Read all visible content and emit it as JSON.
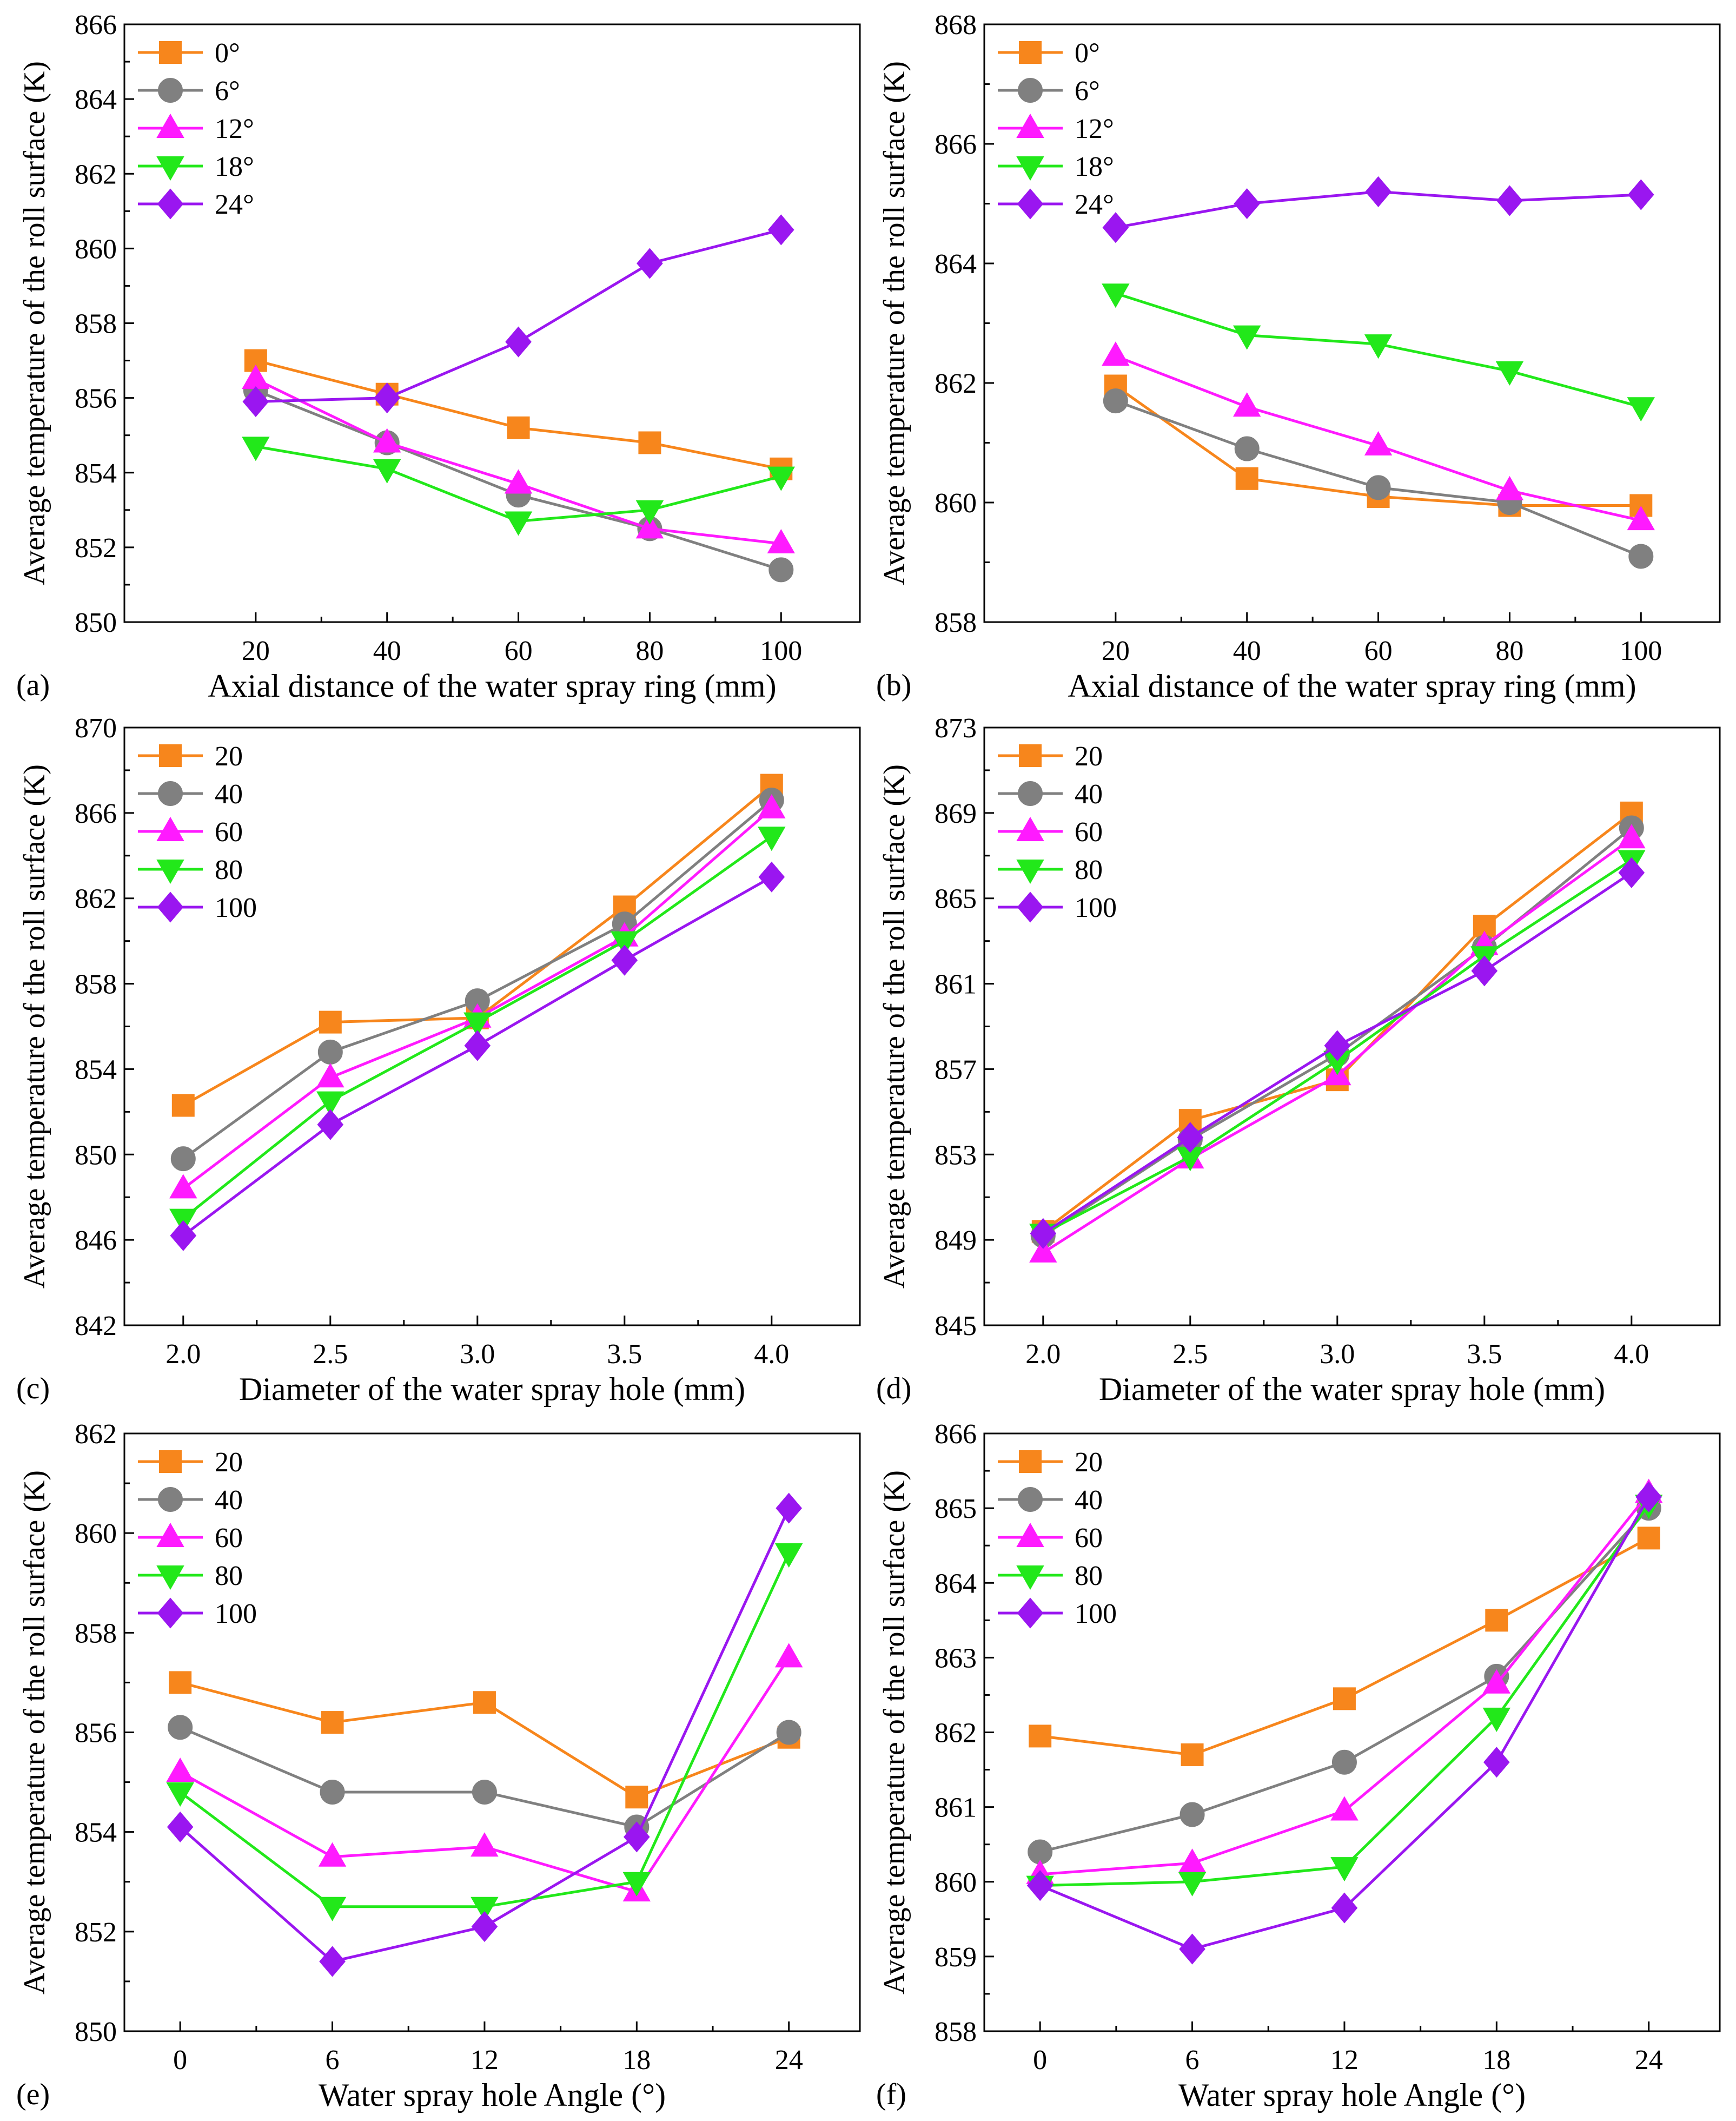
{
  "figure": {
    "marker_colors": {
      "orange": "#f7861c",
      "gray": "#808080",
      "magenta": "#ff1aff",
      "green": "#22e81a",
      "purple": "#9a16f0"
    }
  },
  "chart_data": [
    {
      "panel": "(a)",
      "type": "line",
      "title": "",
      "xlabel": "Axial distance of the water spray ring (mm)",
      "ylabel": "Average temperature of the roll surface (K)",
      "x": [
        20,
        40,
        60,
        80,
        100
      ],
      "xticks": [
        "20",
        "40",
        "60",
        "80",
        "100"
      ],
      "xlim": [
        0,
        112
      ],
      "ylim": [
        850,
        866
      ],
      "yticks": [
        "850",
        "852",
        "854",
        "856",
        "858",
        "860",
        "862",
        "864",
        "866"
      ],
      "legend_position": "top-left",
      "series": [
        {
          "name": "0°",
          "color": "orange",
          "marker": "square",
          "values": [
            857.0,
            856.1,
            855.2,
            854.8,
            854.1
          ]
        },
        {
          "name": "6°",
          "color": "gray",
          "marker": "circle",
          "values": [
            856.2,
            854.8,
            853.4,
            852.5,
            851.4
          ]
        },
        {
          "name": "12°",
          "color": "magenta",
          "marker": "triangle-up",
          "values": [
            856.5,
            854.8,
            853.7,
            852.5,
            852.1
          ]
        },
        {
          "name": "18°",
          "color": "green",
          "marker": "triangle-down",
          "values": [
            854.7,
            854.1,
            852.7,
            853.0,
            853.9
          ]
        },
        {
          "name": "24°",
          "color": "purple",
          "marker": "diamond",
          "values": [
            855.9,
            856.0,
            857.5,
            859.6,
            860.5
          ]
        }
      ]
    },
    {
      "panel": "(b)",
      "type": "line",
      "title": "",
      "xlabel": "Axial distance of the water spray ring (mm)",
      "ylabel": "Average temperature of the roll surface (K)",
      "x": [
        20,
        40,
        60,
        80,
        100
      ],
      "xticks": [
        "20",
        "40",
        "60",
        "80",
        "100"
      ],
      "xlim": [
        0,
        112
      ],
      "ylim": [
        858,
        868
      ],
      "yticks": [
        "858",
        "860",
        "862",
        "864",
        "866",
        "868"
      ],
      "legend_position": "top-left",
      "series": [
        {
          "name": "0°",
          "color": "orange",
          "marker": "square",
          "values": [
            861.95,
            860.4,
            860.1,
            859.95,
            859.95
          ]
        },
        {
          "name": "6°",
          "color": "gray",
          "marker": "circle",
          "values": [
            861.7,
            860.9,
            860.25,
            860.0,
            859.1
          ]
        },
        {
          "name": "12°",
          "color": "magenta",
          "marker": "triangle-up",
          "values": [
            862.45,
            861.6,
            860.95,
            860.2,
            859.7
          ]
        },
        {
          "name": "18°",
          "color": "green",
          "marker": "triangle-down",
          "values": [
            863.5,
            862.8,
            862.65,
            862.2,
            861.6
          ]
        },
        {
          "name": "24°",
          "color": "purple",
          "marker": "diamond",
          "values": [
            864.6,
            865.0,
            865.2,
            865.05,
            865.15
          ]
        }
      ]
    },
    {
      "panel": "(c)",
      "type": "line",
      "title": "",
      "xlabel": "Diameter of the water spray hole (mm)",
      "ylabel": "Average temperature of the roll surface (K)",
      "x": [
        2.0,
        2.5,
        3.0,
        3.5,
        4.0
      ],
      "xticks": [
        "2.0",
        "2.5",
        "3.0",
        "3.5",
        "4.0"
      ],
      "xlim": [
        1.8,
        4.3
      ],
      "ylim": [
        842,
        870
      ],
      "yticks": [
        "842",
        "846",
        "850",
        "854",
        "858",
        "862",
        "866",
        "870"
      ],
      "legend_position": "top-left",
      "series": [
        {
          "name": "20",
          "color": "orange",
          "marker": "square",
          "values": [
            852.3,
            856.2,
            856.4,
            861.6,
            867.3
          ]
        },
        {
          "name": "40",
          "color": "gray",
          "marker": "circle",
          "values": [
            849.8,
            854.8,
            857.2,
            860.8,
            866.6
          ]
        },
        {
          "name": "60",
          "color": "magenta",
          "marker": "triangle-up",
          "values": [
            848.4,
            853.6,
            856.4,
            860.2,
            866.2
          ]
        },
        {
          "name": "80",
          "color": "green",
          "marker": "triangle-down",
          "values": [
            847.0,
            852.5,
            856.2,
            860.0,
            864.9
          ]
        },
        {
          "name": "100",
          "color": "purple",
          "marker": "diamond",
          "values": [
            846.2,
            851.4,
            855.1,
            859.1,
            863.0
          ]
        }
      ]
    },
    {
      "panel": "(d)",
      "type": "line",
      "title": "",
      "xlabel": "Diameter of the water spray hole (mm)",
      "ylabel": "Average temperature of the roll surface (K)",
      "x": [
        2.0,
        2.5,
        3.0,
        3.5,
        4.0
      ],
      "xticks": [
        "2.0",
        "2.5",
        "3.0",
        "3.5",
        "4.0"
      ],
      "xlim": [
        1.8,
        4.3
      ],
      "ylim": [
        845,
        873
      ],
      "yticks": [
        "845",
        "849",
        "853",
        "857",
        "861",
        "865",
        "869",
        "873"
      ],
      "legend_position": "top-left",
      "series": [
        {
          "name": "20",
          "color": "orange",
          "marker": "square",
          "values": [
            849.4,
            854.6,
            856.5,
            863.7,
            869.0
          ]
        },
        {
          "name": "40",
          "color": "gray",
          "marker": "circle",
          "values": [
            849.2,
            853.7,
            857.7,
            862.7,
            868.3
          ]
        },
        {
          "name": "60",
          "color": "magenta",
          "marker": "triangle-up",
          "values": [
            848.4,
            852.8,
            856.7,
            862.8,
            867.8
          ]
        },
        {
          "name": "80",
          "color": "green",
          "marker": "triangle-down",
          "values": [
            849.3,
            852.9,
            857.4,
            862.3,
            866.8
          ]
        },
        {
          "name": "100",
          "color": "purple",
          "marker": "diamond",
          "values": [
            849.3,
            853.8,
            858.1,
            861.6,
            866.2
          ]
        }
      ]
    },
    {
      "panel": "(e)",
      "type": "line",
      "title": "",
      "xlabel": "Water spray hole Angle (°)",
      "ylabel": "Average temperature of the roll surface (K)",
      "x": [
        0,
        6,
        12,
        18,
        24
      ],
      "xticks": [
        "0",
        "6",
        "12",
        "18",
        "24"
      ],
      "xlim": [
        -2.2,
        26.8
      ],
      "ylim": [
        850,
        862
      ],
      "yticks": [
        "850",
        "852",
        "854",
        "856",
        "858",
        "860",
        "862"
      ],
      "legend_position": "top-left",
      "series": [
        {
          "name": "20",
          "color": "orange",
          "marker": "square",
          "values": [
            857.0,
            856.2,
            856.6,
            854.7,
            855.9
          ]
        },
        {
          "name": "40",
          "color": "gray",
          "marker": "circle",
          "values": [
            856.1,
            854.8,
            854.8,
            854.1,
            856.0
          ]
        },
        {
          "name": "60",
          "color": "magenta",
          "marker": "triangle-up",
          "values": [
            855.2,
            853.5,
            853.7,
            852.8,
            857.5
          ]
        },
        {
          "name": "80",
          "color": "green",
          "marker": "triangle-down",
          "values": [
            854.8,
            852.5,
            852.5,
            853.0,
            859.6
          ]
        },
        {
          "name": "100",
          "color": "purple",
          "marker": "diamond",
          "values": [
            854.1,
            851.4,
            852.1,
            853.9,
            860.5
          ]
        }
      ]
    },
    {
      "panel": "(f)",
      "type": "line",
      "title": "",
      "xlabel": "Water spray hole Angle (°)",
      "ylabel": "Average temperature of the roll surface (K)",
      "x": [
        0,
        6,
        12,
        18,
        24
      ],
      "xticks": [
        "0",
        "6",
        "12",
        "18",
        "24"
      ],
      "xlim": [
        -2.2,
        26.8
      ],
      "ylim": [
        858,
        866
      ],
      "yticks": [
        "858",
        "859",
        "860",
        "861",
        "862",
        "863",
        "864",
        "865",
        "866"
      ],
      "legend_position": "top-left",
      "series": [
        {
          "name": "20",
          "color": "orange",
          "marker": "square",
          "values": [
            861.95,
            861.7,
            862.45,
            863.5,
            864.6
          ]
        },
        {
          "name": "40",
          "color": "gray",
          "marker": "circle",
          "values": [
            860.4,
            860.9,
            861.6,
            862.75,
            865.0
          ]
        },
        {
          "name": "60",
          "color": "magenta",
          "marker": "triangle-up",
          "values": [
            860.1,
            860.25,
            860.95,
            862.65,
            865.2
          ]
        },
        {
          "name": "80",
          "color": "green",
          "marker": "triangle-down",
          "values": [
            859.95,
            860.0,
            860.2,
            862.2,
            865.05
          ]
        },
        {
          "name": "100",
          "color": "purple",
          "marker": "diamond",
          "values": [
            859.95,
            859.1,
            859.65,
            861.6,
            865.15
          ]
        }
      ]
    }
  ]
}
